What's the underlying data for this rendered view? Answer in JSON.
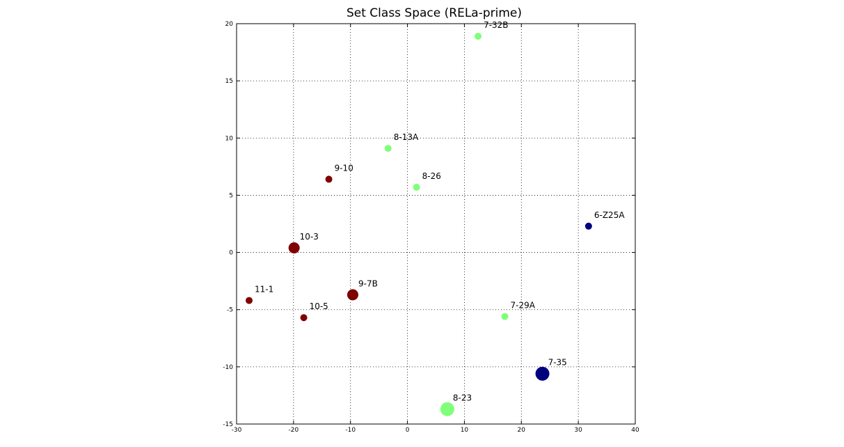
{
  "chart_data": {
    "type": "scatter",
    "title": "Set Class Space (RELa-prime)",
    "xlabel": "",
    "ylabel": "",
    "xlim": [
      -30,
      40
    ],
    "ylim": [
      -15,
      20
    ],
    "xticks": [
      -30,
      -20,
      -10,
      0,
      10,
      20,
      30,
      40
    ],
    "yticks": [
      -15,
      -10,
      -5,
      0,
      5,
      10,
      15,
      20
    ],
    "grid": true,
    "colors": {
      "dark_red": "#7f0000",
      "light_green": "#80ff7a",
      "dark_blue": "#00007f"
    },
    "points": [
      {
        "label": "7-32B",
        "x": 12.4,
        "y": 18.9,
        "color": "#80ff7a",
        "size": "small"
      },
      {
        "label": "8-13A",
        "x": -3.4,
        "y": 9.1,
        "color": "#80ff7a",
        "size": "small"
      },
      {
        "label": "9-10",
        "x": -13.8,
        "y": 6.4,
        "color": "#7f0000",
        "size": "small"
      },
      {
        "label": "8-26",
        "x": 1.6,
        "y": 5.7,
        "color": "#80ff7a",
        "size": "small"
      },
      {
        "label": "6-Z25A",
        "x": 31.8,
        "y": 2.3,
        "color": "#00007f",
        "size": "small"
      },
      {
        "label": "10-3",
        "x": -19.9,
        "y": 0.4,
        "color": "#7f0000",
        "size": "medium"
      },
      {
        "label": "11-1",
        "x": -27.8,
        "y": -4.2,
        "color": "#7f0000",
        "size": "small"
      },
      {
        "label": "9-7B",
        "x": -9.6,
        "y": -3.7,
        "color": "#7f0000",
        "size": "medium"
      },
      {
        "label": "10-5",
        "x": -18.2,
        "y": -5.7,
        "color": "#7f0000",
        "size": "small"
      },
      {
        "label": "7-29A",
        "x": 17.1,
        "y": -5.6,
        "color": "#80ff7a",
        "size": "small"
      },
      {
        "label": "7-35",
        "x": 23.7,
        "y": -10.6,
        "color": "#00007f",
        "size": "large"
      },
      {
        "label": "8-23",
        "x": 7.0,
        "y": -13.7,
        "color": "#80ff7a",
        "size": "large"
      }
    ]
  }
}
